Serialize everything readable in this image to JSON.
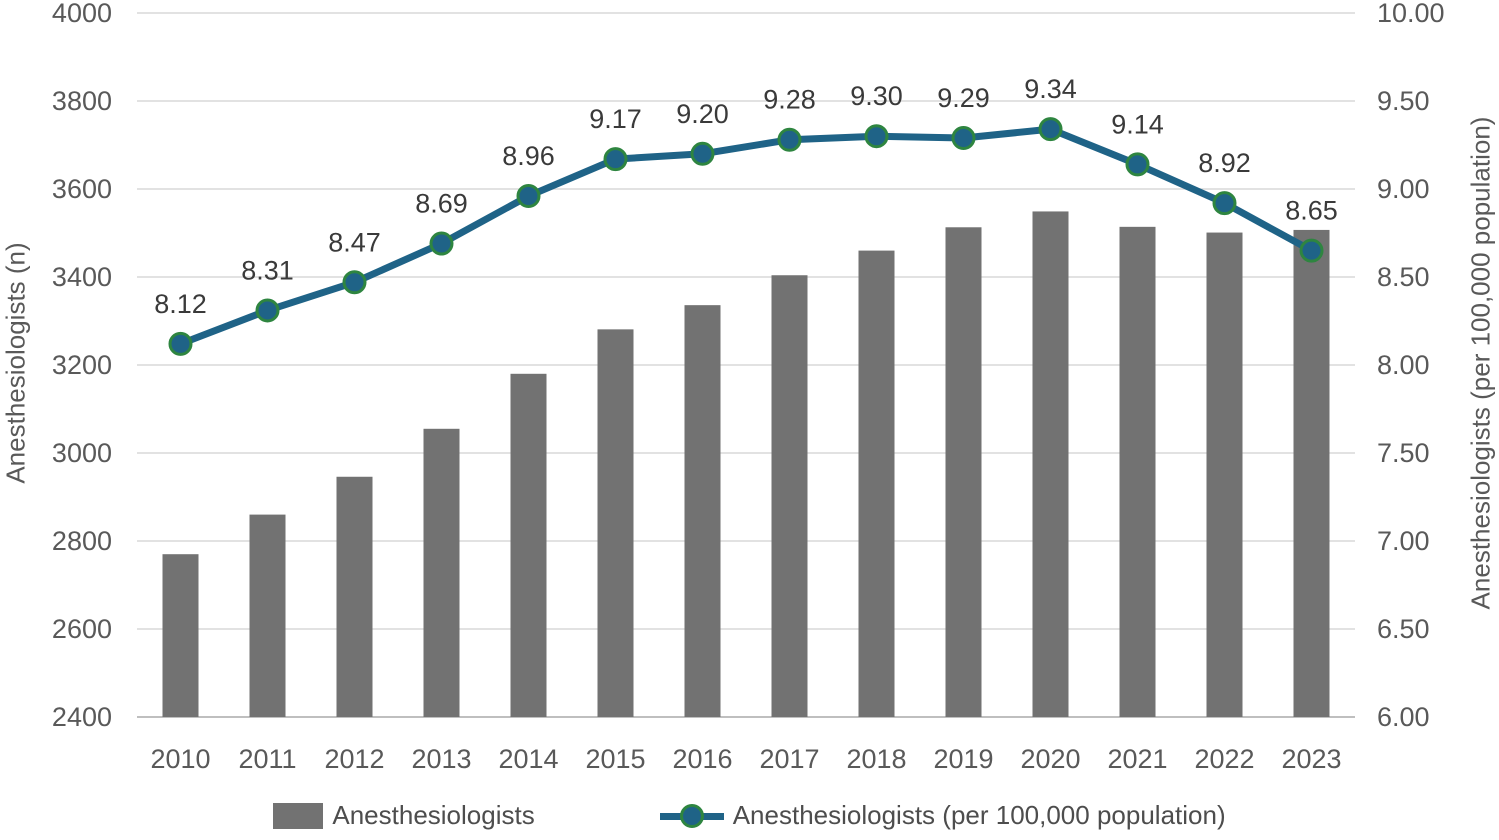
{
  "chart_data": {
    "type": "combo-bar-line",
    "categories": [
      "2010",
      "2011",
      "2012",
      "2013",
      "2014",
      "2015",
      "2016",
      "2017",
      "2018",
      "2019",
      "2020",
      "2021",
      "2022",
      "2023"
    ],
    "series": [
      {
        "name": "Anesthesiologists",
        "type": "bar",
        "axis": "left",
        "color": "#727272",
        "values": [
          2770,
          2860,
          2946,
          3055,
          3180,
          3281,
          3336,
          3404,
          3460,
          3513,
          3549,
          3514,
          3501,
          3507
        ]
      },
      {
        "name": "Anesthesiologists (per 100,000 population)",
        "type": "line",
        "axis": "right",
        "color": "#1F6387",
        "marker_fill": "#1F6387",
        "marker_border": "#2E8540",
        "values": [
          8.12,
          8.31,
          8.47,
          8.69,
          8.96,
          9.17,
          9.2,
          9.28,
          9.3,
          9.29,
          9.34,
          9.14,
          8.92,
          8.65
        ],
        "data_labels": [
          "8.12",
          "8.31",
          "8.47",
          "8.69",
          "8.96",
          "9.17",
          "9.20",
          "9.28",
          "9.30",
          "9.29",
          "9.34",
          "9.14",
          "8.92",
          "8.65"
        ]
      }
    ],
    "ylabel_left": "Anesthesiologists (n)",
    "ylabel_right": "Anesthesiologists (per 100,000 population)",
    "xlabel": "",
    "left_axis": {
      "min": 2400,
      "max": 4000,
      "step": 200,
      "tick_labels": [
        "4000",
        "3800",
        "3600",
        "3400",
        "3200",
        "3000",
        "2800",
        "2600",
        "2400"
      ]
    },
    "right_axis": {
      "min": 6.0,
      "max": 10.0,
      "step": 0.5,
      "tick_labels": [
        "10.00",
        "9.50",
        "9.00",
        "8.50",
        "8.00",
        "7.50",
        "7.00",
        "6.50",
        "6.00"
      ]
    },
    "grid": true,
    "legend_position": "bottom",
    "colors": {
      "gridline": "#D9D9D9",
      "baseline": "#BFBFBF",
      "axis_text": "#595959",
      "data_label_text": "#3A3A3A"
    }
  },
  "legend": {
    "items": [
      {
        "label": "Anesthesiologists"
      },
      {
        "label": "Anesthesiologists (per 100,000 population)"
      }
    ]
  }
}
